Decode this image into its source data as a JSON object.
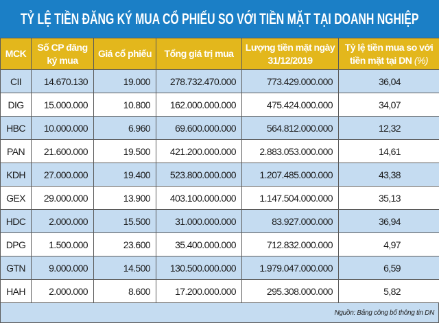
{
  "title": "TỶ LỆ TIỀN ĐĂNG KÝ MUA CỔ PHIẾU SO VỚI TIỀN MẶT TẠI DOANH NGHIỆP",
  "headers": [
    "MCK",
    "Số CP đăng ký mua",
    "Giá cổ phiếu",
    "Tổng giá trị mua",
    "Lượng tiền mặt ngày 31/12/2019",
    "Tỷ lệ tiền mua so với tiền mặt tại DN",
    "(%)"
  ],
  "rows": [
    [
      "CII",
      "14.670.130",
      "19.000",
      "278.732.470.000",
      "773.429.000.000",
      "36,04"
    ],
    [
      "DIG",
      "15.000.000",
      "10.800",
      "162.000.000.000",
      "475.424.000.000",
      "34,07"
    ],
    [
      "HBC",
      "10.000.000",
      "6.960",
      "69.600.000.000",
      "564.812.000.000",
      "12,32"
    ],
    [
      "PAN",
      "21.600.000",
      "19.500",
      "421.200.000.000",
      "2.883.053.000.000",
      "14,61"
    ],
    [
      "KDH",
      "27.000.000",
      "19.400",
      "523.800.000.000",
      "1.207.485.000.000",
      "43,38"
    ],
    [
      "GEX",
      "29.000.000",
      "13.900",
      "403.100.000.000",
      "1.147.504.000.000",
      "35,13"
    ],
    [
      "HDC",
      "2.000.000",
      "15.500",
      "31.000.000.000",
      "83.927.000.000",
      "36,94"
    ],
    [
      "DPG",
      "1.500.000",
      "23.600",
      "35.400.000.000",
      "712.832.000.000",
      "4,97"
    ],
    [
      "GTN",
      "9.000.000",
      "14.500",
      "130.500.000.000",
      "1.979.047.000.000",
      "6,59"
    ],
    [
      "HAH",
      "2.000.000",
      "8.600",
      "17.200.000.000",
      "295.308.000.000",
      "5,82"
    ]
  ],
  "source": "Nguồn: Bảng công bố thông tin DN",
  "colors": {
    "title_bg": "#1b7fc6",
    "header_bg": "#e3b71c",
    "alt_row": "#c5dcf1"
  }
}
